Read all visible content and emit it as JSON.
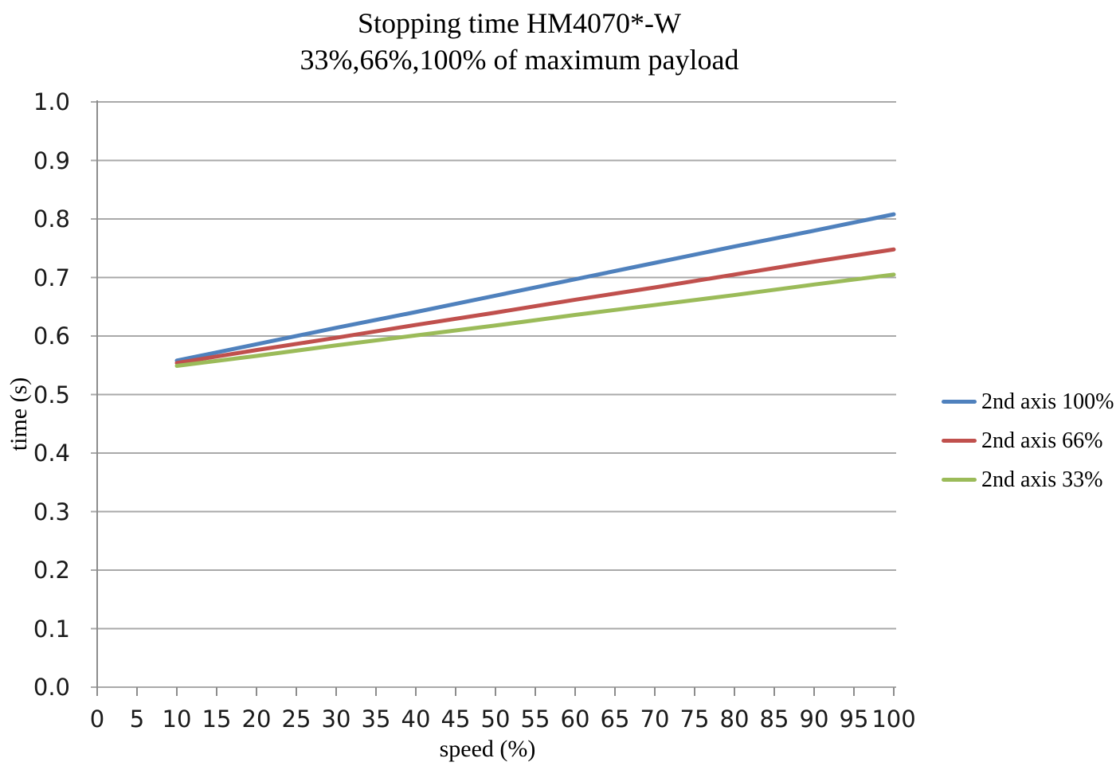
{
  "page": {
    "title": "Stopping time HM4070*-W",
    "subtitle": "33%,66%,100% of maximum payload"
  },
  "chart_data": {
    "type": "line",
    "title": "Stopping time HM4070*-W",
    "subtitle": "33%,66%,100% of maximum payload",
    "xlabel": "speed (%)",
    "ylabel": "time (s)",
    "xlim": [
      0,
      100
    ],
    "ylim": [
      0.0,
      1.0
    ],
    "x_ticks": [
      0,
      5,
      10,
      15,
      20,
      25,
      30,
      35,
      40,
      45,
      50,
      55,
      60,
      65,
      70,
      75,
      80,
      85,
      90,
      95,
      100
    ],
    "y_ticks": [
      0.0,
      0.1,
      0.2,
      0.3,
      0.4,
      0.5,
      0.6,
      0.7,
      0.8,
      0.9,
      1.0
    ],
    "grid": "horizontal",
    "legend_position": "right",
    "x": [
      10,
      20,
      30,
      40,
      50,
      60,
      70,
      80,
      90,
      100
    ],
    "series": [
      {
        "name": "2nd axis 100%",
        "color": "#4F81BD",
        "values": [
          0.558,
          0.586,
          0.614,
          0.641,
          0.669,
          0.697,
          0.725,
          0.753,
          0.78,
          0.808
        ]
      },
      {
        "name": "2nd axis 66%",
        "color": "#C0504D",
        "values": [
          0.554,
          0.576,
          0.597,
          0.619,
          0.64,
          0.662,
          0.683,
          0.705,
          0.727,
          0.748
        ]
      },
      {
        "name": "2nd axis 33%",
        "color": "#9BBB59",
        "values": [
          0.549,
          0.566,
          0.584,
          0.601,
          0.618,
          0.636,
          0.653,
          0.67,
          0.688,
          0.705
        ]
      }
    ]
  },
  "colors": {
    "grid": "#a9a9a9",
    "axis": "#8c8c8c",
    "tick_text": "#1a1a1a",
    "text": "#000000"
  }
}
